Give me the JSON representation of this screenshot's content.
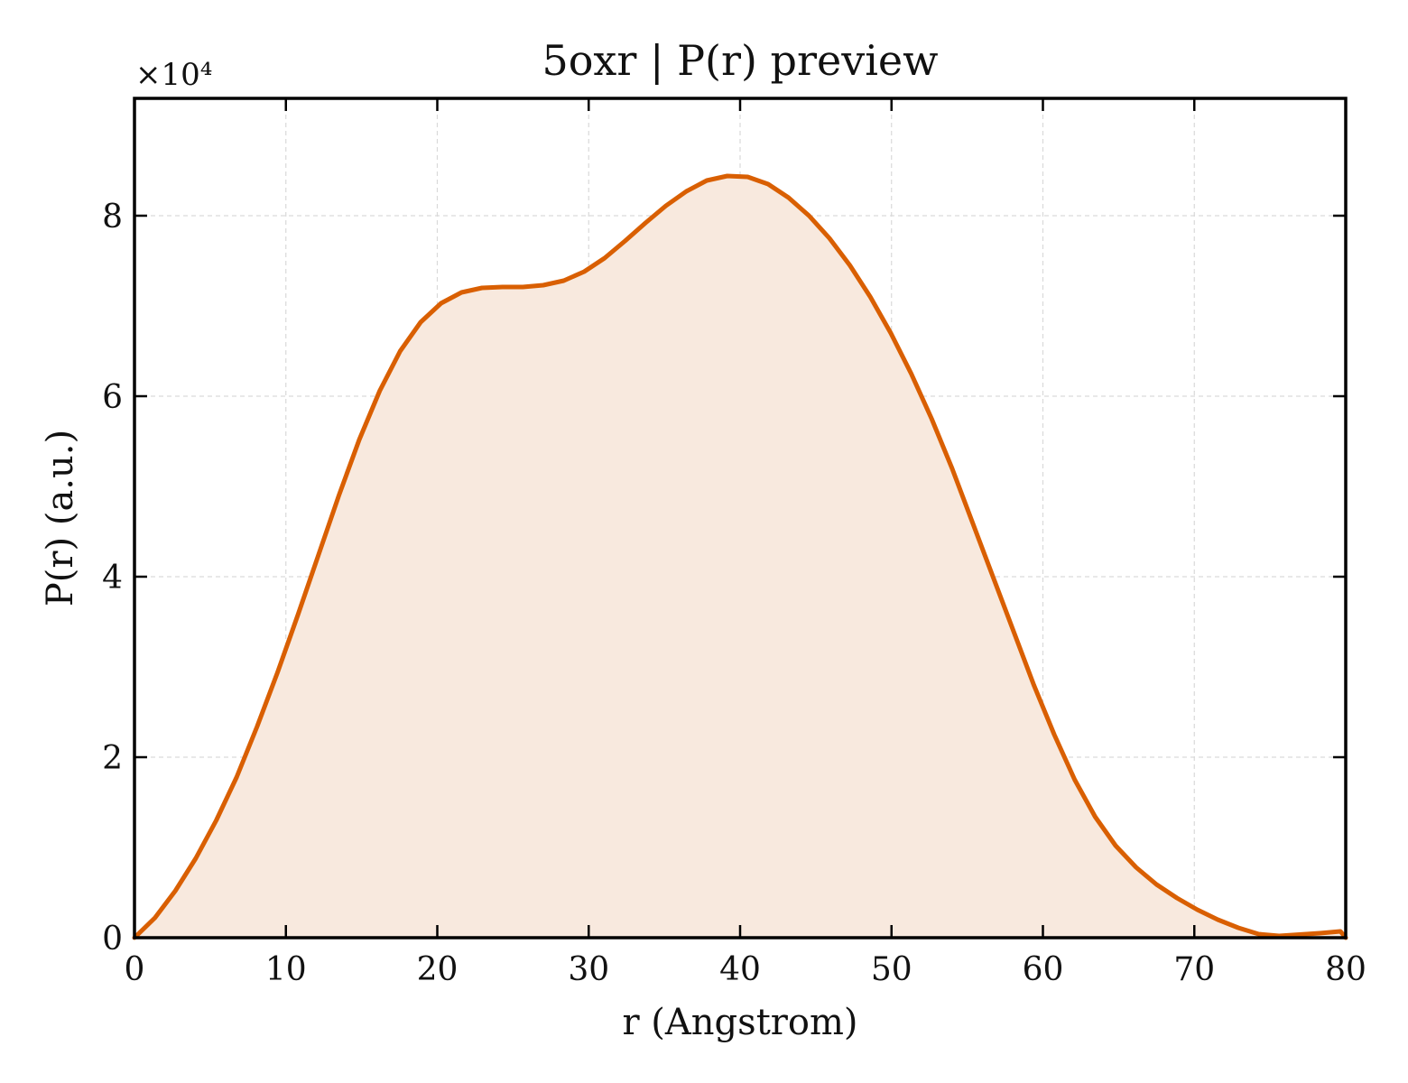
{
  "chart_data": {
    "type": "area",
    "title": "5oxr | P(r) preview",
    "xlabel": "r (Angstrom)",
    "ylabel": "P(r) (a.u.)",
    "y_scale_label": "×10⁴",
    "y_scale_factor": 10000,
    "xlim": [
      0,
      80
    ],
    "ylim": [
      0,
      93000
    ],
    "xticks": [
      0,
      10,
      20,
      30,
      40,
      50,
      60,
      70,
      80
    ],
    "xtick_labels": [
      "0",
      "10",
      "20",
      "30",
      "40",
      "50",
      "60",
      "70",
      "80"
    ],
    "yticks": [
      0,
      20000,
      40000,
      60000,
      80000
    ],
    "ytick_labels": [
      "0",
      "2",
      "4",
      "6",
      "8"
    ],
    "grid": true,
    "color": "#d95f02",
    "fill_color": "#f8e9de",
    "series": [
      {
        "x": [
          0,
          1.35,
          2.7,
          4.05,
          5.4,
          6.75,
          8.1,
          9.45,
          10.8,
          12.15,
          13.5,
          14.85,
          16.2,
          17.55,
          18.9,
          20.25,
          21.6,
          22.95,
          24.3,
          25.65,
          27.0,
          28.35,
          29.7,
          31.05,
          32.4,
          33.75,
          35.1,
          36.45,
          37.8,
          39.15,
          40.5,
          41.85,
          43.2,
          44.55,
          45.9,
          47.25,
          48.6,
          49.95,
          51.3,
          52.65,
          54.0,
          55.35,
          56.7,
          58.05,
          59.4,
          60.75,
          62.1,
          63.45,
          64.8,
          66.15,
          67.5,
          68.85,
          70.2,
          71.55,
          72.9,
          74.25,
          75.6,
          76.95,
          78.3,
          79.65,
          80
        ],
        "values": [
          0,
          2200,
          5200,
          8800,
          13000,
          17800,
          23400,
          29400,
          35800,
          42400,
          49000,
          55200,
          60600,
          65000,
          68200,
          70300,
          71500,
          72000,
          72100,
          72100,
          72300,
          72800,
          73800,
          75300,
          77200,
          79200,
          81100,
          82700,
          83900,
          84400,
          84300,
          83500,
          82000,
          80000,
          77500,
          74500,
          71000,
          67000,
          62500,
          57500,
          52000,
          46000,
          40000,
          34000,
          28000,
          22500,
          17500,
          13400,
          10200,
          7800,
          5900,
          4400,
          3100,
          2000,
          1100,
          400,
          200,
          350,
          500,
          700,
          0
        ]
      }
    ]
  }
}
